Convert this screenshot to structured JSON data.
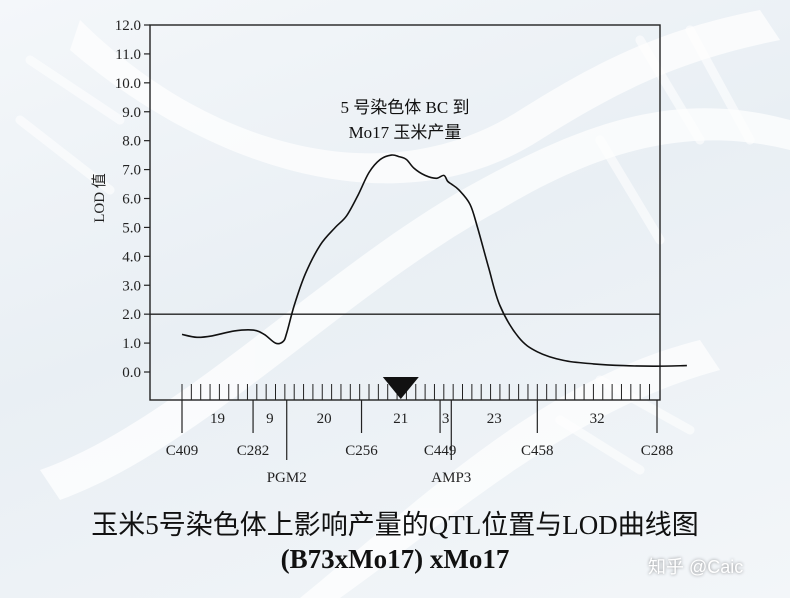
{
  "chart_data": {
    "type": "line",
    "ylabel": "LOD 值",
    "ylim": [
      0,
      12
    ],
    "yticks": [
      "0.0",
      "1.0",
      "2.0",
      "3.0",
      "4.0",
      "5.0",
      "6.0",
      "7.0",
      "8.0",
      "9.0",
      "10.0",
      "11.0",
      "12.0"
    ],
    "threshold": 2.0,
    "annotation_line1": "5 号染色体 BC 到",
    "annotation_line2": "Mo17 玉米产量",
    "x": [
      0,
      4,
      8,
      14,
      19,
      22,
      25,
      27,
      28,
      30,
      33,
      37,
      41,
      44,
      47,
      50,
      53,
      56,
      58,
      60,
      62,
      65,
      68,
      70,
      71,
      72,
      74,
      77,
      79,
      82,
      85,
      90,
      95,
      102,
      110,
      118,
      126,
      135
    ],
    "y": [
      1.3,
      1.2,
      1.25,
      1.42,
      1.45,
      1.3,
      1.0,
      1.05,
      1.35,
      2.3,
      3.4,
      4.4,
      5.0,
      5.4,
      6.1,
      6.9,
      7.35,
      7.5,
      7.45,
      7.35,
      7.05,
      6.8,
      6.7,
      6.8,
      6.6,
      6.5,
      6.3,
      5.8,
      5.0,
      3.6,
      2.3,
      1.2,
      0.7,
      0.4,
      0.28,
      0.22,
      0.2,
      0.22
    ],
    "markers": [
      {
        "name": "C409",
        "pos": 0,
        "row": 1
      },
      {
        "name": "C282",
        "pos": 19,
        "row": 1
      },
      {
        "name": "PGM2",
        "pos": 28,
        "row": 2
      },
      {
        "name": "C256",
        "pos": 48,
        "row": 1
      },
      {
        "name": "C449",
        "pos": 69,
        "row": 1
      },
      {
        "name": "AMP3",
        "pos": 72,
        "row": 2
      },
      {
        "name": "C458",
        "pos": 95,
        "row": 1
      },
      {
        "name": "C288",
        "pos": 127,
        "row": 1
      }
    ],
    "intervals": [
      {
        "label": "19",
        "pos": 9.5
      },
      {
        "label": "9",
        "pos": 23.5
      },
      {
        "label": "20",
        "pos": 38
      },
      {
        "label": "21",
        "pos": 58.5
      },
      {
        "label": "3",
        "pos": 70.5
      },
      {
        "label": "23",
        "pos": 83.5
      },
      {
        "label": "32",
        "pos": 111
      }
    ],
    "qtl_position": 58.5
  },
  "caption": {
    "line1": "玉米5号染色体上影响产量的QTL位置与LOD曲线图",
    "line2": "(B73xMo17)  xMo17"
  },
  "watermark": "知乎 @Caic"
}
